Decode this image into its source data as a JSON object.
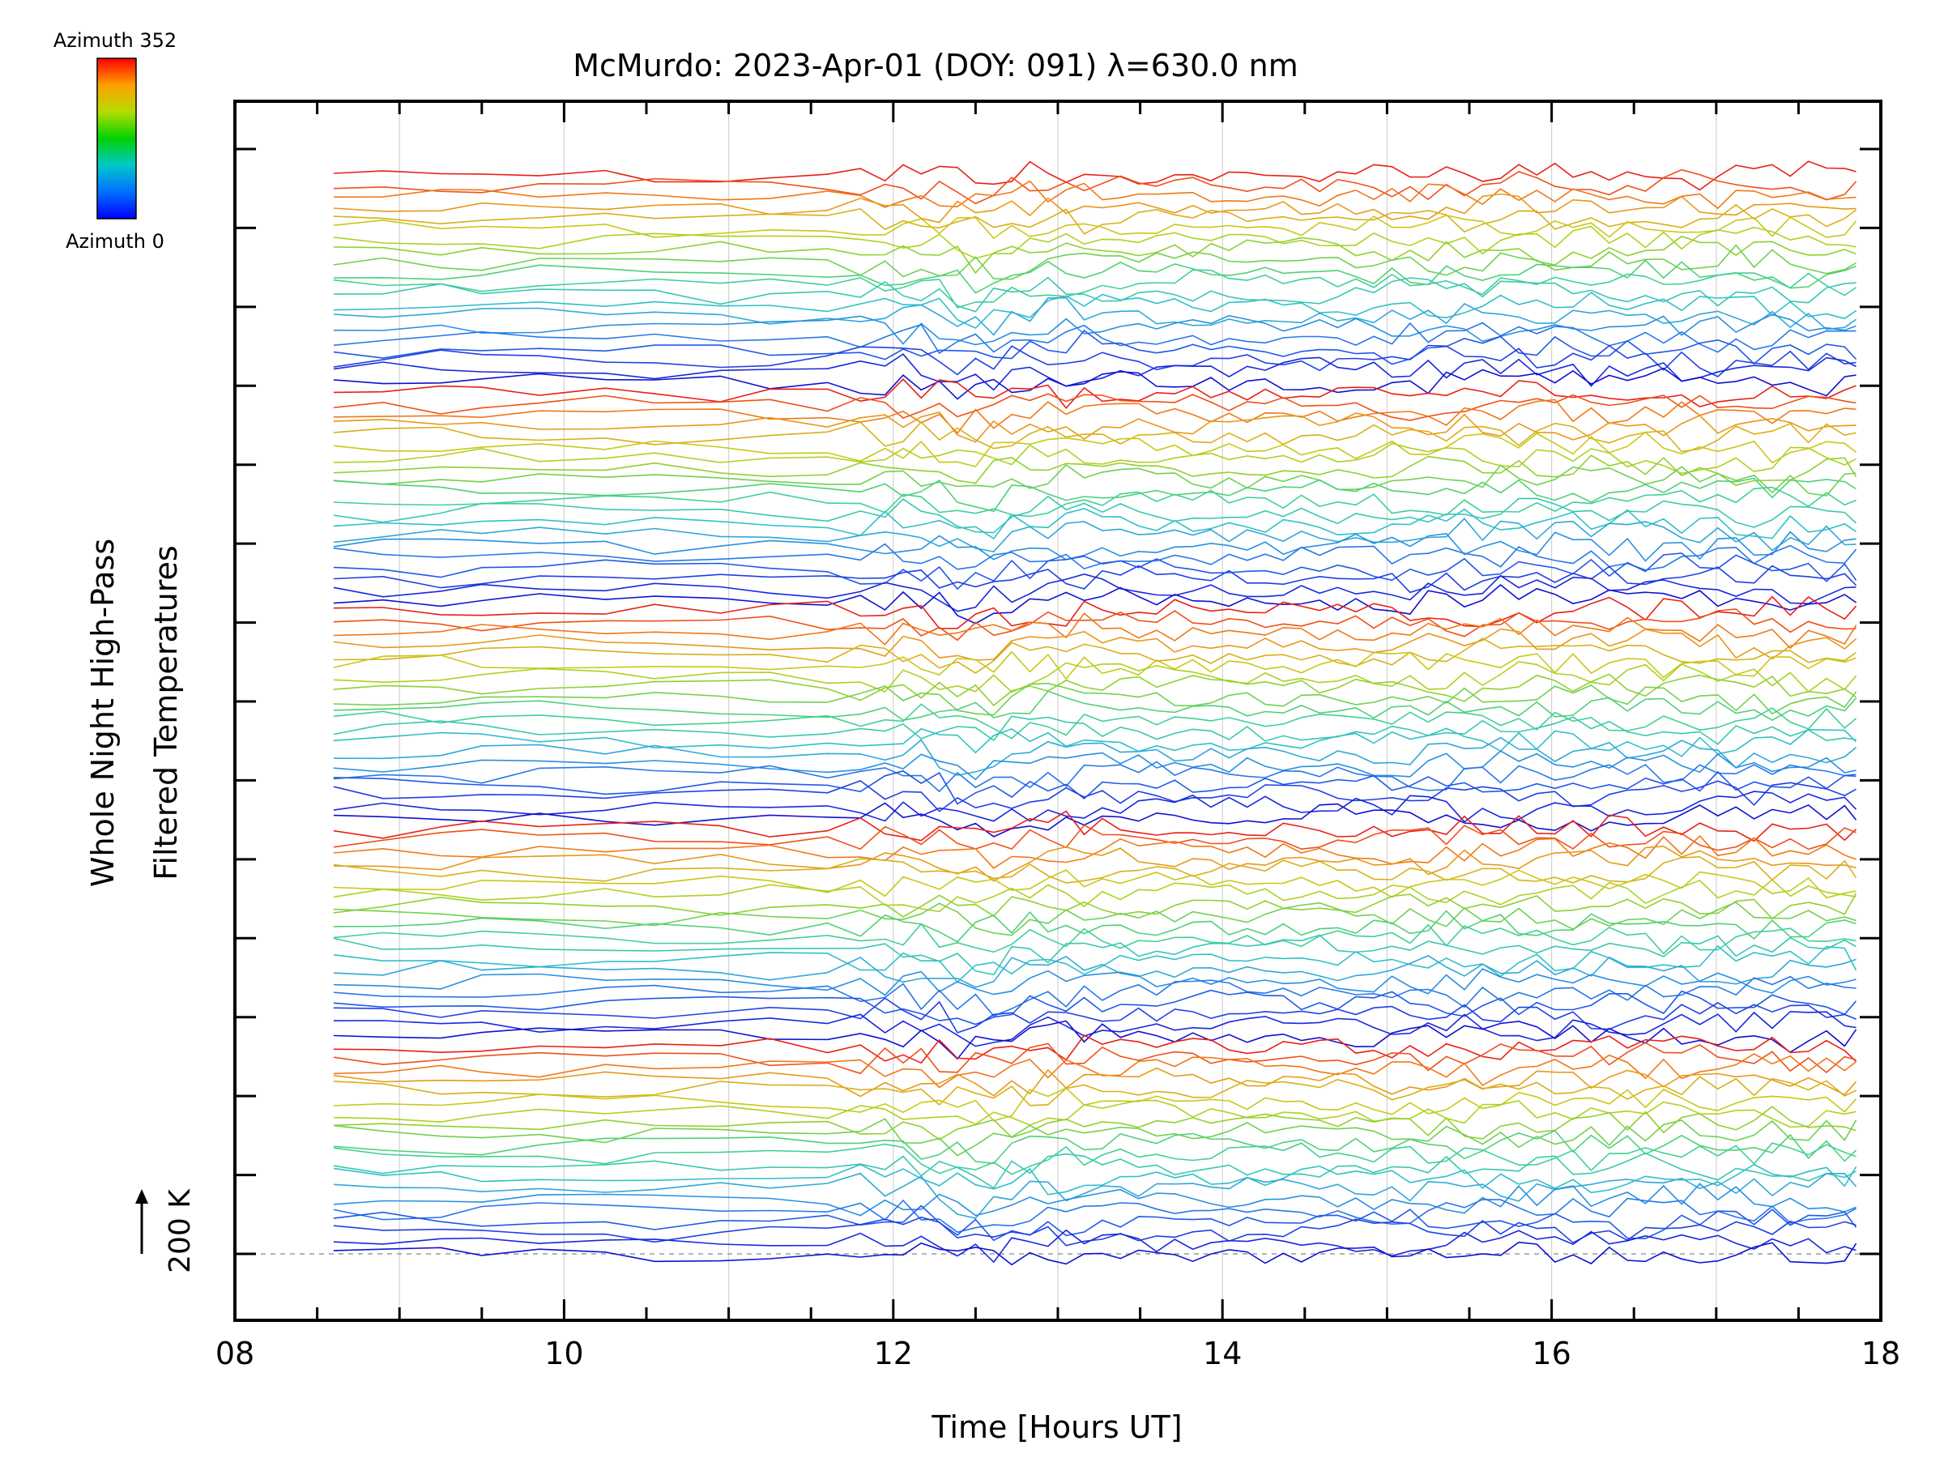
{
  "chart_data": {
    "type": "line",
    "title": "McMurdo: 2023-Apr-01 (DOY: 091) λ=630.0 nm",
    "xlabel": "Time [Hours UT]",
    "ylabel_line1": "Whole Night High-Pass",
    "ylabel_line2": "Filtered Temperatures",
    "xlim": [
      8,
      18
    ],
    "x_ticks": [
      "08",
      "10",
      "12",
      "14",
      "16",
      "18"
    ],
    "grid": "vertical",
    "scale_bar_label": "200 K",
    "colorbar": {
      "top_label": "Azimuth 352",
      "bottom_label": "Azimuth 0",
      "colors": [
        "#0000ff",
        "#0070ff",
        "#00c8c8",
        "#00d200",
        "#b4dc00",
        "#ffa000",
        "#ff0000"
      ]
    },
    "time_start_hour": 8.6,
    "time_end_hour": 17.85,
    "num_traces": 100,
    "azimuth_cycle": 20,
    "palette": [
      "#1010d0",
      "#1828dc",
      "#2040e4",
      "#2058e8",
      "#2878e8",
      "#2890e0",
      "#30a8d8",
      "#30c0c8",
      "#38c8b0",
      "#40d098",
      "#50d078",
      "#70d050",
      "#90d030",
      "#b0d020",
      "#c8c818",
      "#d8b018",
      "#e89818",
      "#f07818",
      "#f05018",
      "#e82018"
    ]
  }
}
